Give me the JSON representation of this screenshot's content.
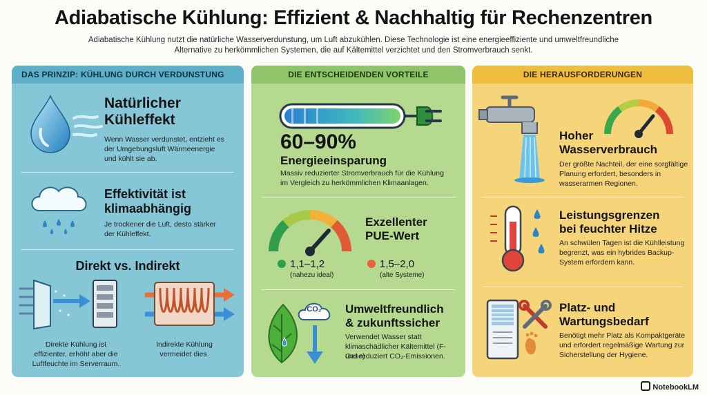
{
  "header": {
    "title": "Adiabatische Kühlung: Effizient & Nachhaltig für Rechenzentren",
    "subtitle_line1": "Adiabatische Kühlung nutzt die natürliche Wasserverdunstung, um Luft abzukühlen. Diese Technologie ist eine energieeffiziente und umweltfreundliche",
    "subtitle_line2": "Alternative zu herkömmlichen Systemen, die auf Kältemittel verzichtet und den Stromverbrauch senkt."
  },
  "col1": {
    "heading": "Das Prinzip: Kühlung durch Verdunstung",
    "block1": {
      "title_l1": "Natürlicher",
      "title_l2": "Kühleffekt",
      "text_l1": "Wenn Wasser verdunstet, entzieht es",
      "text_l2": "der Umgebungsluft Wärmeenergie",
      "text_l3": "und kühlt sie ab."
    },
    "block2": {
      "title_l1": "Effektivität ist",
      "title_l2": "klimaabhängig",
      "text_l1": "Je trockener die Luft, desto stärker",
      "text_l2": "der Kühleffekt."
    },
    "block3": {
      "title": "Direkt vs. Indirekt",
      "left_l1": "Direkte Kühlung ist",
      "left_l2": "effizienter, erhöht aber die",
      "left_l3": "Luftfeuchte im Serverraum.",
      "right_l1": "Indirekte Kühlung",
      "right_l2": "vermeidet dies."
    }
  },
  "col2": {
    "heading": "Die entscheidenden Vorteile",
    "block1": {
      "big": "60–90%",
      "title": "Energieeinsparung",
      "text_l1": "Massiv reduzierter Stromverbrauch für die Kühlung",
      "text_l2": "im Vergleich zu herkömmlichen Klimaanlagen."
    },
    "block2": {
      "title_l1": "Exzellenter",
      "title_l2": "PUE-Wert",
      "left_value": "1,1–1,2",
      "left_note": "(nahezu ideal)",
      "right_value": "1,5–2,0",
      "right_note": "(alte Systeme)",
      "good_color": "#2e9e4a",
      "bad_color": "#e8603c"
    },
    "block3": {
      "title_l1": "Umweltfreundlich",
      "title_l2": "& zukunftssicher",
      "co2_label": "CO₂",
      "text_l1": "Verwendet Wasser statt",
      "text_l2": "klimaschädlicher Kältemittel (F-Gase)",
      "text_l3": "und reduziert CO₂-Emissionen."
    }
  },
  "col3": {
    "heading": "Die Herausforderungen",
    "block1": {
      "title_l1": "Hoher",
      "title_l2": "Wasserverbrauch",
      "text_l1": "Der größte Nachteil, der eine sorgfältige",
      "text_l2": "Planung erfordert, besonders in",
      "text_l3": "wasserarmen Regionen."
    },
    "block2": {
      "title_l1": "Leistungsgrenzen",
      "title_l2": "bei feuchter Hitze",
      "text_l1": "An schwülen Tagen ist die Kühlleistung",
      "text_l2": "begrenzt, was ein hybrides Backup-",
      "text_l3": "System erfordern kann."
    },
    "block3": {
      "title_l1": "Platz- und",
      "title_l2": "Wartungsbedarf",
      "text_l1": "Benötigt mehr Platz als Kompaktgeräte",
      "text_l2": "und erfordert regelmäßige Wartung zur",
      "text_l3": "Sicherstellung der Hygiene."
    }
  },
  "footer": {
    "brand": "NotebookLM"
  }
}
